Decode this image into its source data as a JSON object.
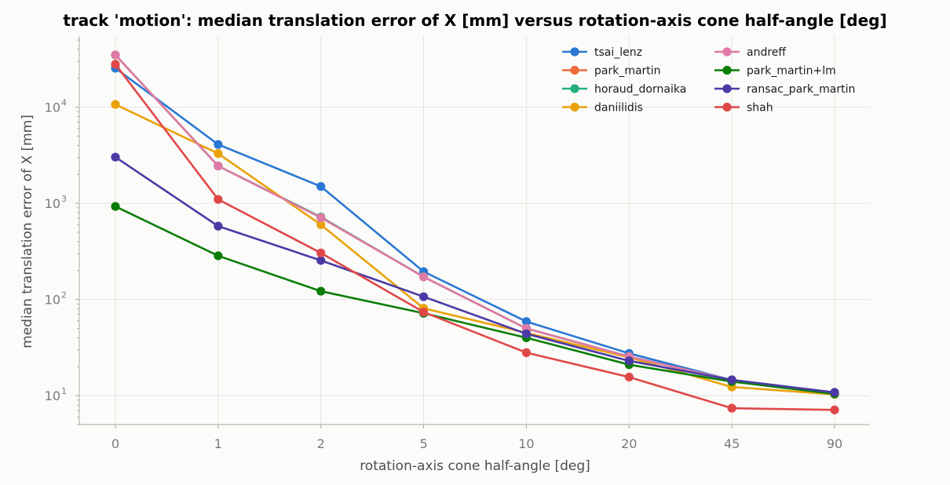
{
  "chart_data": {
    "type": "line",
    "title": "track 'motion': median translation error of X [mm] versus rotation-axis cone half-angle [deg]",
    "xlabel": "rotation-axis cone half-angle [deg]",
    "ylabel": "median translation error of X [mm]",
    "x_scale": "categorical",
    "y_scale": "log",
    "categories": [
      "0",
      "1",
      "2",
      "5",
      "10",
      "20",
      "45",
      "90"
    ],
    "ylim": [
      5,
      55000
    ],
    "y_ticks": [
      {
        "value": 10,
        "base": "10",
        "exp": "1"
      },
      {
        "value": 100,
        "base": "10",
        "exp": "2"
      },
      {
        "value": 1000,
        "base": "10",
        "exp": "3"
      },
      {
        "value": 10000,
        "base": "10",
        "exp": "4"
      }
    ],
    "grid": true,
    "legend_position": "top-right",
    "series": [
      {
        "name": "tsai_lenz",
        "color": "#2a78d4",
        "values": [
          25500,
          4100,
          1500,
          195,
          59,
          27.5,
          14.5,
          10.8
        ]
      },
      {
        "name": "park_martin",
        "color": "#ee6a3a",
        "values": [
          35000,
          2450,
          720,
          172,
          50,
          25.5,
          14.5,
          10.6
        ]
      },
      {
        "name": "horaud_dornaika",
        "color": "#22b07d",
        "values": [
          35000,
          2450,
          720,
          172,
          50,
          25.5,
          14.5,
          10.6
        ]
      },
      {
        "name": "daniilidis",
        "color": "#eaa20a",
        "values": [
          10700,
          3300,
          600,
          81,
          45,
          25,
          12.3,
          10.3
        ]
      },
      {
        "name": "andreff",
        "color": "#e07aa6",
        "values": [
          35000,
          2450,
          710,
          172,
          50,
          25.5,
          14.5,
          10.6
        ]
      },
      {
        "name": "park_martin+lm",
        "color": "#0a7e07",
        "values": [
          930,
          285,
          122,
          72,
          40,
          21,
          14,
          10.4
        ]
      },
      {
        "name": "ransac_park_martin",
        "color": "#4b3aa6",
        "values": [
          3030,
          580,
          255,
          107,
          44,
          23,
          14.6,
          10.8
        ]
      },
      {
        "name": "shah",
        "color": "#e04848",
        "values": [
          28000,
          1100,
          305,
          74,
          28,
          15.6,
          7.4,
          7.1
        ]
      }
    ]
  }
}
